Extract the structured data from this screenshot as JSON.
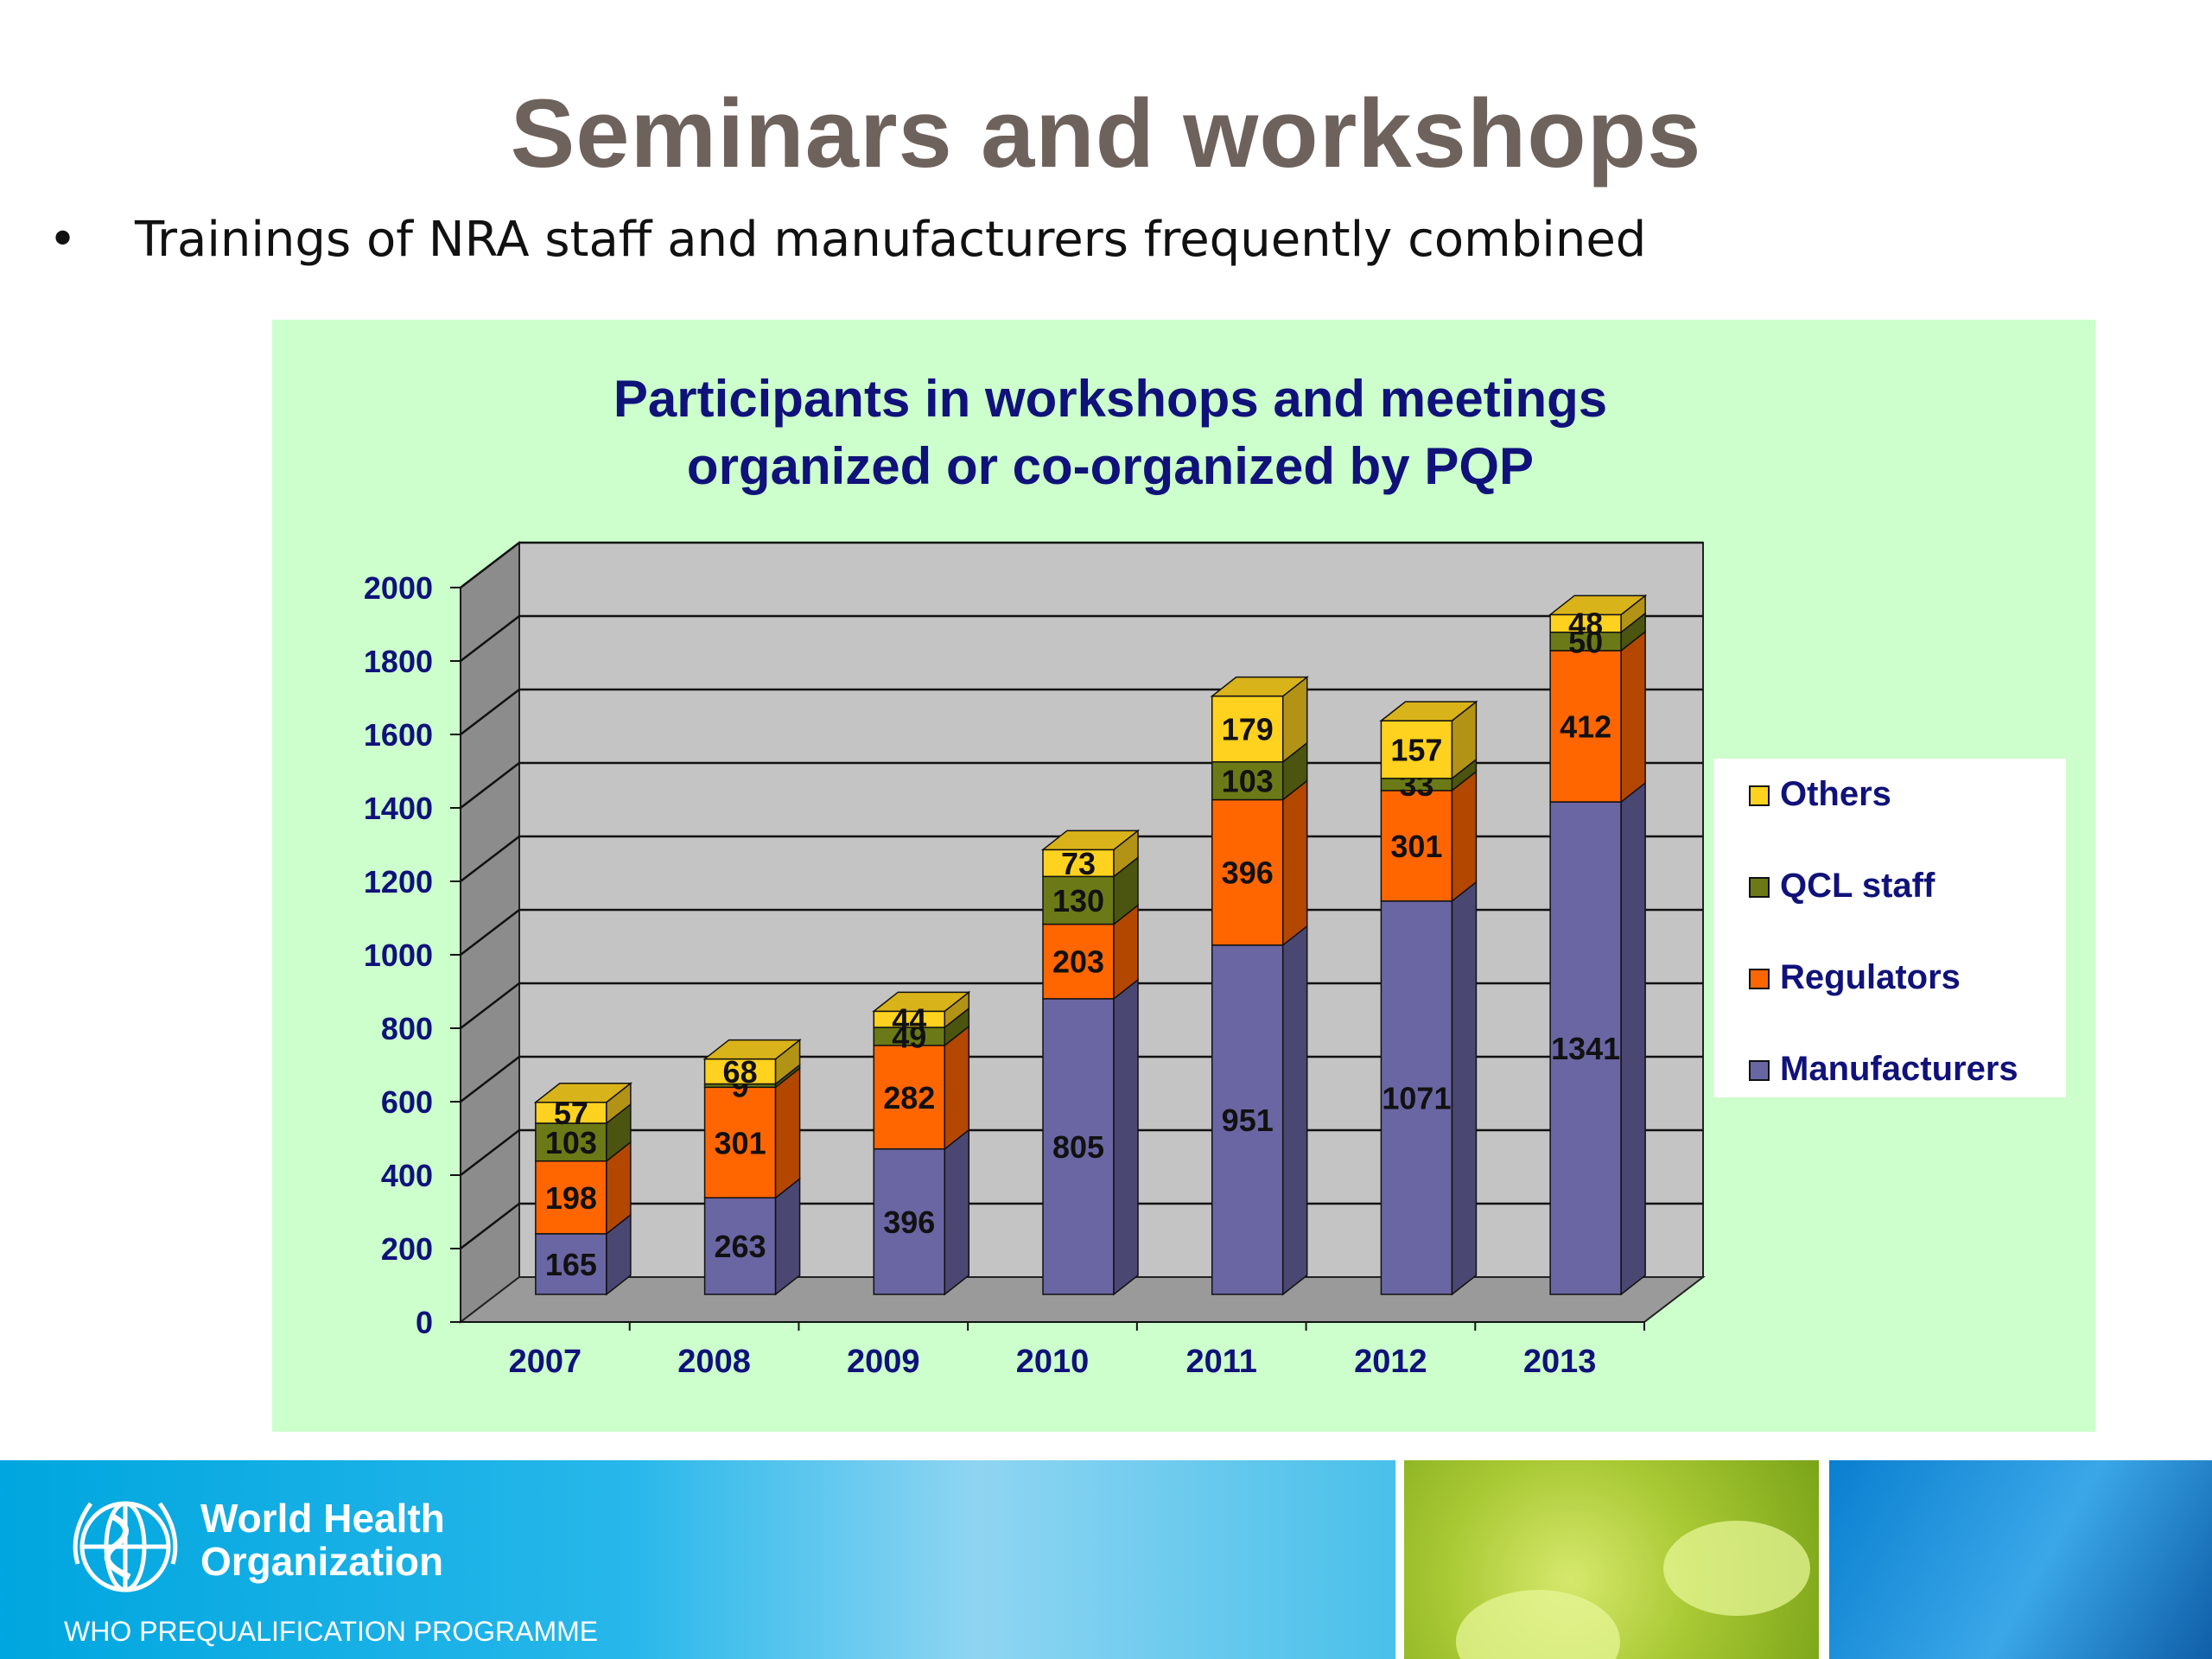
{
  "slide": {
    "title": "Seminars and workshops",
    "bullet": "Trainings of NRA staff and manufacturers frequently combined"
  },
  "footer": {
    "org_line1": "World Health",
    "org_line2": "Organization",
    "programme": "WHO PREQUALIFICATION PROGRAMME"
  },
  "chart_data": {
    "type": "bar",
    "stacked": true,
    "three_d": true,
    "title_lines": [
      "Participants in workshops and meetings",
      "organized or co-organized by PQP"
    ],
    "categories": [
      "2007",
      "2008",
      "2009",
      "2010",
      "2011",
      "2012",
      "2013"
    ],
    "yticks": [
      "0",
      "200",
      "400",
      "600",
      "800",
      "1000",
      "1200",
      "1400",
      "1600",
      "1800",
      "2000"
    ],
    "ylim": [
      0,
      2000
    ],
    "grid": true,
    "legend_position": "right",
    "series": [
      {
        "name": "Manufacturers",
        "color": "#6a66a3",
        "values": [
          165,
          263,
          396,
          805,
          951,
          1071,
          1341
        ],
        "labels": [
          "165",
          "263",
          "396",
          "805",
          "951",
          "1071",
          "1341"
        ]
      },
      {
        "name": "Regulators",
        "color": "#ff6600",
        "values": [
          198,
          301,
          282,
          203,
          396,
          301,
          412
        ],
        "labels": [
          "198",
          "301",
          "282",
          "203",
          "396",
          "301",
          "412"
        ]
      },
      {
        "name": "QCL staff",
        "color": "#6b7a16",
        "values": [
          103,
          9,
          49,
          130,
          103,
          33,
          50
        ],
        "labels": [
          "103",
          "9",
          "49",
          "130",
          "103",
          "33",
          "50"
        ]
      },
      {
        "name": "Others",
        "color": "#ffd21f",
        "values": [
          57,
          68,
          44,
          73,
          179,
          157,
          48
        ],
        "labels": [
          "57",
          "68",
          "44",
          "73",
          "179",
          "157",
          "48"
        ]
      }
    ]
  }
}
